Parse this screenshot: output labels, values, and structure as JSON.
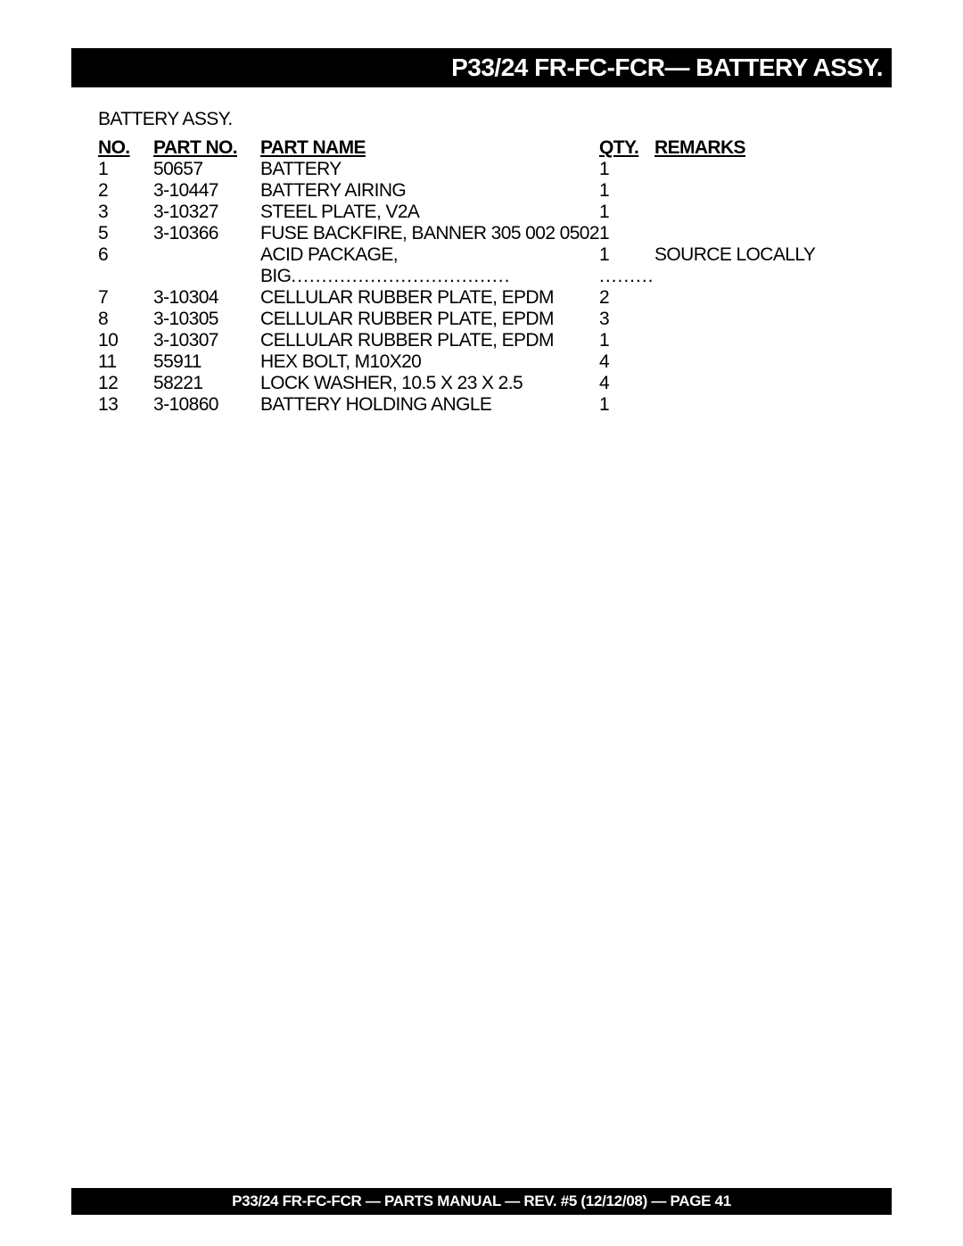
{
  "header": {
    "title": "P33/24 FR-FC-FCR— BATTERY ASSY."
  },
  "section_label": "BATTERY ASSY.",
  "columns": {
    "no": "NO.",
    "part_no": "PART NO.",
    "part_name": "PART NAME",
    "qty": "QTY.",
    "remarks": "REMARKS"
  },
  "rows": [
    {
      "no": "1",
      "part_no": "50657",
      "part_name": "BATTERY",
      "qty": "1",
      "remarks": "",
      "dotted": false
    },
    {
      "no": "2",
      "part_no": "3-10447",
      "part_name": "BATTERY AIRING",
      "qty": "1",
      "remarks": "",
      "dotted": false
    },
    {
      "no": "3",
      "part_no": "3-10327",
      "part_name": "STEEL PLATE, V2A",
      "qty": "1",
      "remarks": "",
      "dotted": false
    },
    {
      "no": "5",
      "part_no": "3-10366",
      "part_name": "FUSE BACKFIRE, BANNER 305 002 0502",
      "qty": "1",
      "remarks": "",
      "dotted": false
    },
    {
      "no": "6",
      "part_no": "",
      "part_name": "ACID PACKAGE, BIG",
      "qty": "1",
      "remarks": "SOURCE LOCALLY",
      "dotted": true
    },
    {
      "no": "7",
      "part_no": "3-10304",
      "part_name": "CELLULAR RUBBER PLATE, EPDM",
      "qty": "2",
      "remarks": "",
      "dotted": false
    },
    {
      "no": "8",
      "part_no": "3-10305",
      "part_name": "CELLULAR RUBBER PLATE, EPDM",
      "qty": "3",
      "remarks": "",
      "dotted": false
    },
    {
      "no": "10",
      "part_no": "3-10307",
      "part_name": "CELLULAR RUBBER PLATE, EPDM",
      "qty": "1",
      "remarks": "",
      "dotted": false
    },
    {
      "no": "11",
      "part_no": "55911",
      "part_name": "HEX BOLT, M10X20",
      "qty": "4",
      "remarks": "",
      "dotted": false
    },
    {
      "no": "12",
      "part_no": "58221",
      "part_name": "LOCK WASHER, 10.5 X 23 X 2.5",
      "qty": "4",
      "remarks": "",
      "dotted": false
    },
    {
      "no": "13",
      "part_no": "3-10860",
      "part_name": "BATTERY HOLDING ANGLE",
      "qty": "1",
      "remarks": "",
      "dotted": false
    }
  ],
  "footer": {
    "text": "P33/24 FR-FC-FCR — PARTS MANUAL — REV. #5 (12/12/08) — PAGE 41"
  }
}
